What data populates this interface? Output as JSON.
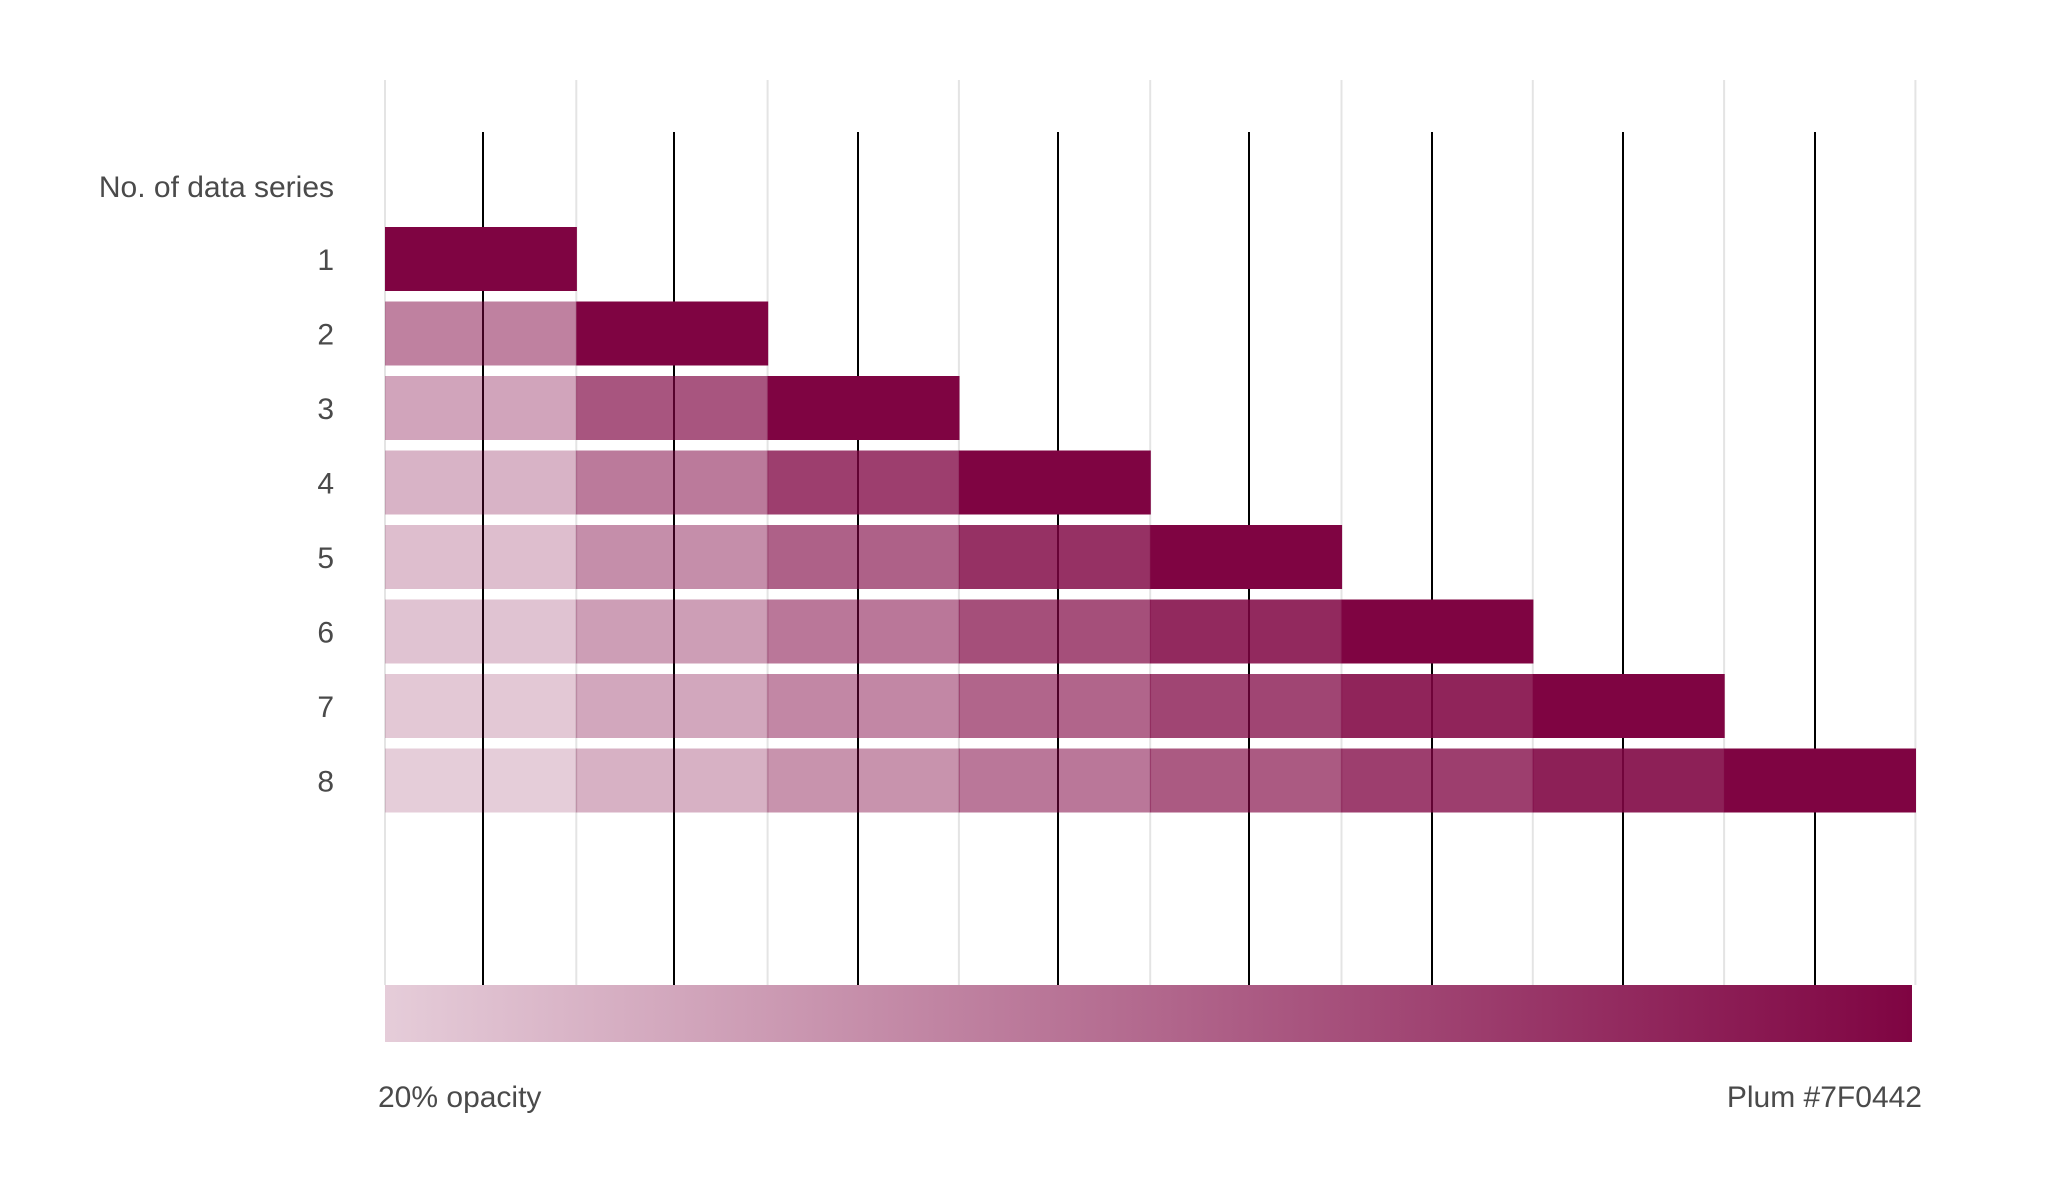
{
  "chart_data": {
    "type": "bar",
    "title": "",
    "ylabel": "No. of data series",
    "categories": [
      "1",
      "2",
      "3",
      "4",
      "5",
      "6",
      "7",
      "8"
    ],
    "rows": [
      {
        "label": "1",
        "segments": [
          1.0
        ]
      },
      {
        "label": "2",
        "segments": [
          0.5,
          1.0
        ]
      },
      {
        "label": "3",
        "segments": [
          0.36,
          0.68,
          1.0
        ]
      },
      {
        "label": "4",
        "segments": [
          0.3,
          0.53,
          0.77,
          1.0
        ]
      },
      {
        "label": "5",
        "segments": [
          0.26,
          0.45,
          0.63,
          0.82,
          1.0
        ]
      },
      {
        "label": "6",
        "segments": [
          0.24,
          0.39,
          0.54,
          0.7,
          0.85,
          1.0
        ]
      },
      {
        "label": "7",
        "segments": [
          0.22,
          0.35,
          0.48,
          0.61,
          0.74,
          0.87,
          1.0
        ]
      },
      {
        "label": "8",
        "segments": [
          0.2,
          0.31,
          0.43,
          0.54,
          0.66,
          0.77,
          0.89,
          1.0
        ]
      }
    ],
    "segment_metric": "opacity",
    "base_color": "#7F0442",
    "gradient": {
      "start_label": "20% opacity",
      "end_label": "Plum #7F0442",
      "start_opacity": 0.2,
      "end_opacity": 1.0
    },
    "grid": true
  }
}
